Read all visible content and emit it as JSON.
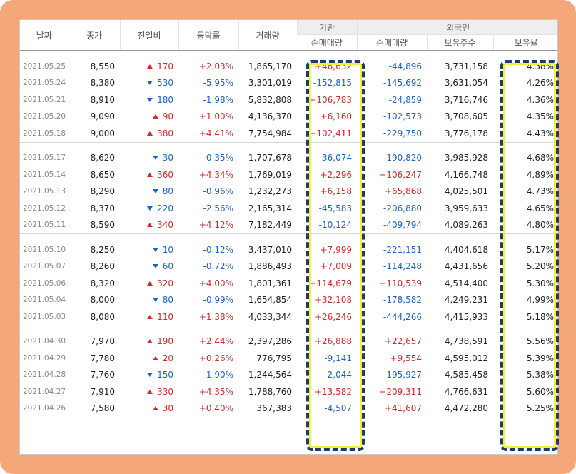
{
  "header": {
    "date": "날짜",
    "close": "종가",
    "change": "전일비",
    "rate": "등락률",
    "volume": "거래량",
    "institution_group": "기관",
    "foreign_group": "외국인",
    "inst_net": "순매매량",
    "foreign_net": "순매매량",
    "foreign_holdings": "보유주수",
    "foreign_ratio": "보유율"
  },
  "colors": {
    "up": "#d22b2b",
    "down": "#1f63c8",
    "frame": "#f4a87a",
    "highlight": "#f5ee3a"
  },
  "groups": [
    [
      {
        "date": "2021.05.25",
        "close": "8,550",
        "dir": "up",
        "change": "170",
        "rate": "+2.03%",
        "volume": "1,865,170",
        "inst": "+46,632",
        "fnet": "-44,896",
        "fhold": "3,731,158",
        "fratio": "4.38%"
      },
      {
        "date": "2021.05.24",
        "close": "8,380",
        "dir": "down",
        "change": "530",
        "rate": "-5.95%",
        "volume": "3,301,019",
        "inst": "-152,815",
        "fnet": "-145,692",
        "fhold": "3,631,054",
        "fratio": "4.26%"
      },
      {
        "date": "2021.05.21",
        "close": "8,910",
        "dir": "down",
        "change": "180",
        "rate": "-1.98%",
        "volume": "5,832,808",
        "inst": "+106,783",
        "fnet": "-24,859",
        "fhold": "3,716,746",
        "fratio": "4.36%"
      },
      {
        "date": "2021.05.20",
        "close": "9,090",
        "dir": "up",
        "change": "90",
        "rate": "+1.00%",
        "volume": "4,136,370",
        "inst": "+6,160",
        "fnet": "-102,573",
        "fhold": "3,708,605",
        "fratio": "4.35%"
      },
      {
        "date": "2021.05.18",
        "close": "9,000",
        "dir": "up",
        "change": "380",
        "rate": "+4.41%",
        "volume": "7,754,984",
        "inst": "+102,411",
        "fnet": "-229,750",
        "fhold": "3,776,178",
        "fratio": "4.43%"
      }
    ],
    [
      {
        "date": "2021.05.17",
        "close": "8,620",
        "dir": "down",
        "change": "30",
        "rate": "-0.35%",
        "volume": "1,707,678",
        "inst": "-36,074",
        "fnet": "-190,820",
        "fhold": "3,985,928",
        "fratio": "4.68%"
      },
      {
        "date": "2021.05.14",
        "close": "8,650",
        "dir": "up",
        "change": "360",
        "rate": "+4.34%",
        "volume": "1,769,019",
        "inst": "+2,296",
        "fnet": "+106,247",
        "fhold": "4,166,748",
        "fratio": "4.89%"
      },
      {
        "date": "2021.05.13",
        "close": "8,290",
        "dir": "down",
        "change": "80",
        "rate": "-0.96%",
        "volume": "1,232,273",
        "inst": "+6,158",
        "fnet": "+65,868",
        "fhold": "4,025,501",
        "fratio": "4.73%"
      },
      {
        "date": "2021.05.12",
        "close": "8,370",
        "dir": "down",
        "change": "220",
        "rate": "-2.56%",
        "volume": "2,165,314",
        "inst": "-45,583",
        "fnet": "-206,880",
        "fhold": "3,959,633",
        "fratio": "4.65%"
      },
      {
        "date": "2021.05.11",
        "close": "8,590",
        "dir": "up",
        "change": "340",
        "rate": "+4.12%",
        "volume": "7,182,449",
        "inst": "-10,124",
        "fnet": "-409,794",
        "fhold": "4,089,263",
        "fratio": "4.80%"
      }
    ],
    [
      {
        "date": "2021.05.10",
        "close": "8,250",
        "dir": "down",
        "change": "10",
        "rate": "-0.12%",
        "volume": "3,437,010",
        "inst": "+7,999",
        "fnet": "-221,151",
        "fhold": "4,404,618",
        "fratio": "5.17%"
      },
      {
        "date": "2021.05.07",
        "close": "8,260",
        "dir": "down",
        "change": "60",
        "rate": "-0.72%",
        "volume": "1,886,493",
        "inst": "+7,009",
        "fnet": "-114,248",
        "fhold": "4,431,656",
        "fratio": "5.20%"
      },
      {
        "date": "2021.05.06",
        "close": "8,320",
        "dir": "up",
        "change": "320",
        "rate": "+4.00%",
        "volume": "1,801,361",
        "inst": "+114,679",
        "fnet": "+110,539",
        "fhold": "4,514,400",
        "fratio": "5.30%"
      },
      {
        "date": "2021.05.04",
        "close": "8,000",
        "dir": "down",
        "change": "80",
        "rate": "-0.99%",
        "volume": "1,654,854",
        "inst": "+32,108",
        "fnet": "-178,582",
        "fhold": "4,249,231",
        "fratio": "4.99%"
      },
      {
        "date": "2021.05.03",
        "close": "8,080",
        "dir": "up",
        "change": "110",
        "rate": "+1.38%",
        "volume": "4,033,344",
        "inst": "+26,246",
        "fnet": "-444,266",
        "fhold": "4,415,933",
        "fratio": "5.18%"
      }
    ],
    [
      {
        "date": "2021.04.30",
        "close": "7,970",
        "dir": "up",
        "change": "190",
        "rate": "+2.44%",
        "volume": "2,397,286",
        "inst": "+26,888",
        "fnet": "+22,657",
        "fhold": "4,738,591",
        "fratio": "5.56%"
      },
      {
        "date": "2021.04.29",
        "close": "7,780",
        "dir": "up",
        "change": "20",
        "rate": "+0.26%",
        "volume": "776,795",
        "inst": "-9,141",
        "fnet": "+9,554",
        "fhold": "4,595,012",
        "fratio": "5.39%"
      },
      {
        "date": "2021.04.28",
        "close": "7,760",
        "dir": "down",
        "change": "150",
        "rate": "-1.90%",
        "volume": "1,244,564",
        "inst": "-2,044",
        "fnet": "-195,927",
        "fhold": "4,585,458",
        "fratio": "5.38%"
      },
      {
        "date": "2021.04.27",
        "close": "7,910",
        "dir": "up",
        "change": "330",
        "rate": "+4.35%",
        "volume": "1,788,760",
        "inst": "+13,582",
        "fnet": "+209,311",
        "fhold": "4,766,631",
        "fratio": "5.60%"
      },
      {
        "date": "2021.04.26",
        "close": "7,580",
        "dir": "up",
        "change": "30",
        "rate": "+0.40%",
        "volume": "367,383",
        "inst": "-4,507",
        "fnet": "+41,607",
        "fhold": "4,472,280",
        "fratio": "5.25%"
      }
    ]
  ]
}
